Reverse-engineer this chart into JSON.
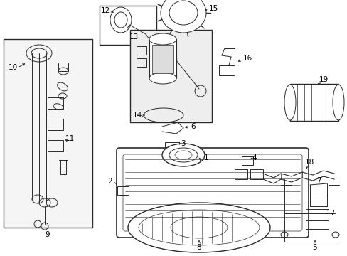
{
  "bg_color": "#ffffff",
  "line_color": "#2a2a2a",
  "label_color": "#000000",
  "figsize": [
    4.89,
    3.6
  ],
  "dpi": 100,
  "lw": 0.7,
  "fs": 7.5
}
